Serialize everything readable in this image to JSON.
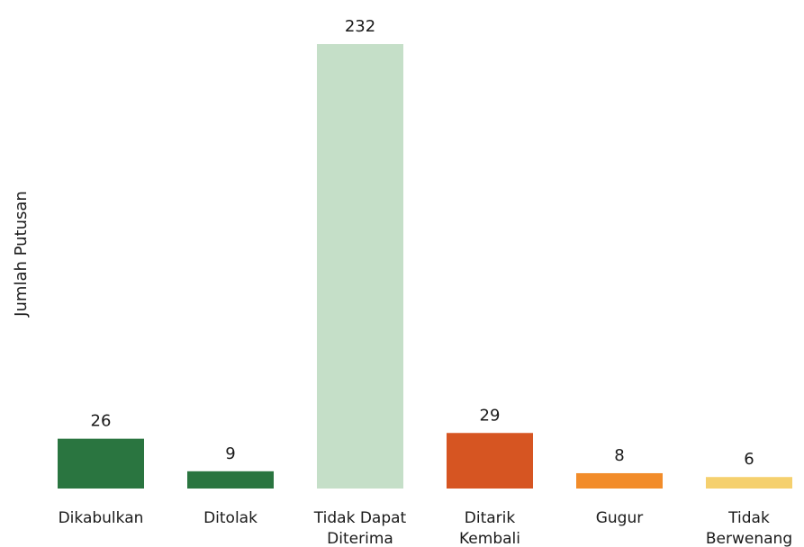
{
  "chart_data": {
    "type": "bar",
    "categories": [
      [
        "Dikabulkan"
      ],
      [
        "Ditolak"
      ],
      [
        "Tidak Dapat",
        "Diterima"
      ],
      [
        "Ditarik",
        "Kembali"
      ],
      [
        "Gugur"
      ],
      [
        "Tidak",
        "Berwenang"
      ]
    ],
    "values": [
      26,
      9,
      232,
      29,
      8,
      6
    ],
    "colors": [
      "#2a7540",
      "#2a7540",
      "#c5dfc8",
      "#d65522",
      "#f28c2a",
      "#f5d06e"
    ],
    "title": "",
    "xlabel": "",
    "ylabel": "Jumlah Putusan",
    "ylim": [
      0,
      232
    ],
    "grid": false,
    "data_labels": true
  }
}
